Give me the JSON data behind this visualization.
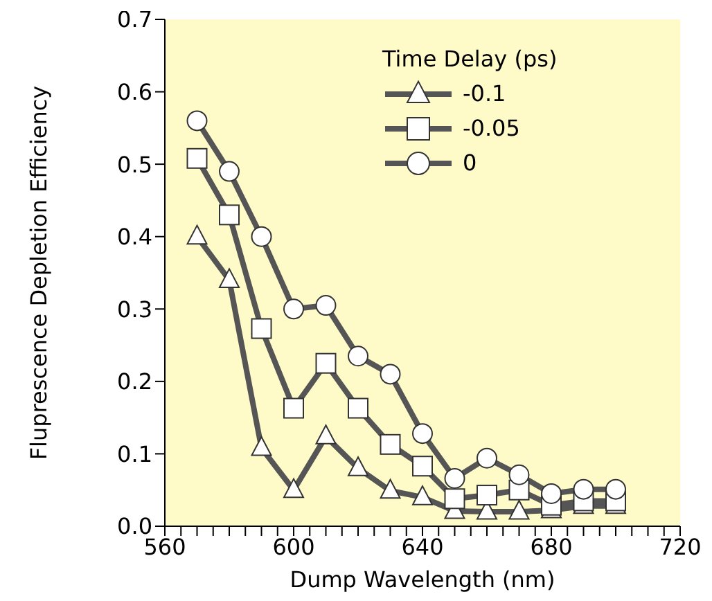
{
  "chart_data": {
    "type": "line",
    "xlabel": "Dump Wavelength (nm)",
    "ylabel": "Fluprescence Depletion Efficiency",
    "legend_title": "Time Delay (ps)",
    "legend": "top right",
    "grid": false,
    "x": [
      570,
      580,
      590,
      600,
      610,
      620,
      630,
      640,
      650,
      660,
      670,
      680,
      690,
      700
    ],
    "xlim": [
      560,
      720
    ],
    "xticks": [
      560,
      {
        "value": 565,
        "label": null
      },
      {
        "value": 570,
        "label": null
      },
      {
        "value": 575,
        "label": null
      },
      {
        "value": 580,
        "label": null
      },
      {
        "value": 585,
        "label": null
      },
      {
        "value": 590,
        "label": null
      },
      {
        "value": 595,
        "label": null
      },
      600,
      {
        "value": 605,
        "label": null
      },
      {
        "value": 610,
        "label": null
      },
      {
        "value": 615,
        "label": null
      },
      {
        "value": 620,
        "label": null
      },
      {
        "value": 625,
        "label": null
      },
      {
        "value": 630,
        "label": null
      },
      {
        "value": 635,
        "label": null
      },
      640,
      {
        "value": 645,
        "label": null
      },
      {
        "value": 650,
        "label": null
      },
      {
        "value": 655,
        "label": null
      },
      {
        "value": 660,
        "label": null
      },
      {
        "value": 665,
        "label": null
      },
      {
        "value": 670,
        "label": null
      },
      {
        "value": 675,
        "label": null
      },
      680,
      {
        "value": 685,
        "label": null
      },
      {
        "value": 690,
        "label": null
      },
      {
        "value": 695,
        "label": null
      },
      {
        "value": 700,
        "label": null
      },
      {
        "value": 705,
        "label": null
      },
      {
        "value": 710,
        "label": null
      },
      {
        "value": 715,
        "label": null
      },
      720
    ],
    "ylim": [
      0,
      0.7
    ],
    "yticks": [
      {
        "value": 0,
        "label": "0.0"
      },
      0.1,
      0.2,
      0.3,
      0.4,
      0.5,
      0.6,
      0.7
    ],
    "series": [
      {
        "name": "-0.1",
        "color": "#555555",
        "marker": "triangle",
        "values": [
          0.4,
          0.34,
          0.108,
          0.05,
          0.124,
          0.08,
          0.049,
          0.04,
          0.021,
          0.02,
          0.02,
          0.022,
          0.028,
          0.028
        ]
      },
      {
        "name": "-0.05",
        "color": "#555555",
        "marker": "square",
        "values": [
          0.508,
          0.43,
          0.273,
          0.163,
          0.225,
          0.163,
          0.113,
          0.083,
          0.038,
          0.043,
          0.05,
          0.029,
          0.035,
          0.035
        ]
      },
      {
        "name": "0",
        "color": "#555555",
        "marker": "circle",
        "values": [
          0.56,
          0.49,
          0.4,
          0.3,
          0.305,
          0.235,
          0.21,
          0.128,
          0.066,
          0.094,
          0.071,
          0.045,
          0.051,
          0.051
        ]
      }
    ]
  }
}
